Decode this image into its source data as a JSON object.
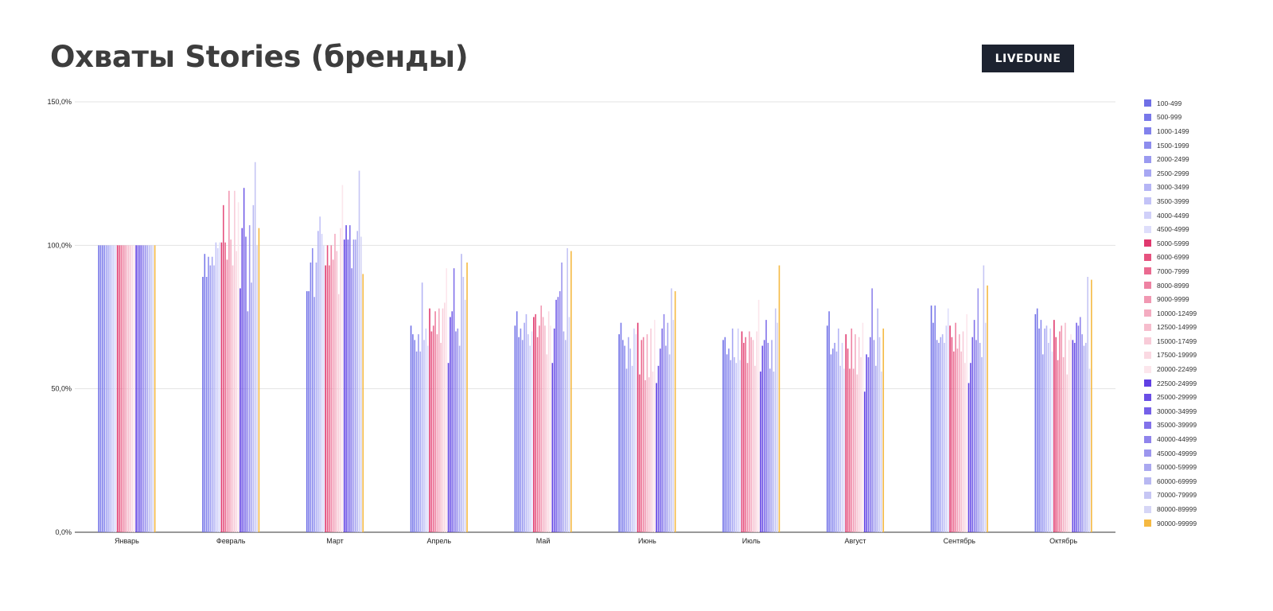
{
  "header": {
    "title": "Охваты Stories (бренды)",
    "brand": "LIVEDUNE"
  },
  "chart_data": {
    "type": "bar",
    "title": "Охваты Stories (бренды)",
    "xlabel": "",
    "ylabel": "",
    "ylim": [
      0,
      150
    ],
    "yticks": [
      "0,0%",
      "50,0%",
      "100,0%",
      "150,0%"
    ],
    "ytick_values": [
      0,
      50,
      100,
      150
    ],
    "grid": true,
    "legend_position": "right",
    "categories": [
      "Январь",
      "Февраль",
      "Март",
      "Апрель",
      "Май",
      "Июнь",
      "Июль",
      "Август",
      "Сентябрь",
      "Октябрь"
    ],
    "series": [
      {
        "name": "100-499",
        "color": "#6f6fe6",
        "values": [
          100,
          89,
          84,
          72,
          72,
          69,
          67,
          72,
          79,
          76
        ]
      },
      {
        "name": "500-999",
        "color": "#7878ea",
        "values": [
          100,
          97,
          84,
          69,
          77,
          73,
          68,
          77,
          73,
          78
        ]
      },
      {
        "name": "1000-1499",
        "color": "#8282ec",
        "values": [
          100,
          89,
          94,
          67,
          68,
          67,
          62,
          62,
          79,
          71
        ]
      },
      {
        "name": "1500-1999",
        "color": "#8d8dee",
        "values": [
          100,
          96,
          99,
          63,
          71,
          65,
          64,
          64,
          67,
          74
        ]
      },
      {
        "name": "2000-2499",
        "color": "#9a9af0",
        "values": [
          100,
          93,
          82,
          69,
          67,
          57,
          60,
          66,
          66,
          62
        ]
      },
      {
        "name": "2500-2999",
        "color": "#a7a7f3",
        "values": [
          100,
          96,
          94,
          63,
          73,
          68,
          71,
          63,
          68,
          71
        ]
      },
      {
        "name": "3000-3499",
        "color": "#b5b5f5",
        "values": [
          100,
          93,
          105,
          87,
          76,
          64,
          61,
          71,
          69,
          72
        ]
      },
      {
        "name": "3500-3999",
        "color": "#c3c3f7",
        "values": [
          100,
          101,
          110,
          67,
          69,
          58,
          59,
          58,
          66,
          66
        ]
      },
      {
        "name": "4000-4499",
        "color": "#d0d0f9",
        "values": [
          100,
          99,
          104,
          71,
          65,
          71,
          71,
          66,
          72,
          71
        ]
      },
      {
        "name": "4500-4999",
        "color": "#dedefb",
        "values": [
          100,
          101,
          100,
          65,
          70,
          69,
          60,
          57,
          78,
          63
        ]
      },
      {
        "name": "5000-5999",
        "color": "#e0386e",
        "values": [
          100,
          101,
          93,
          78,
          75,
          73,
          70,
          69,
          72,
          74
        ]
      },
      {
        "name": "6000-6999",
        "color": "#e6527f",
        "values": [
          100,
          114,
          100,
          70,
          76,
          55,
          66,
          64,
          68,
          68
        ]
      },
      {
        "name": "7000-7999",
        "color": "#ea6a90",
        "values": [
          100,
          101,
          93,
          72,
          68,
          67,
          68,
          57,
          63,
          60
        ]
      },
      {
        "name": "8000-8999",
        "color": "#ee82a2",
        "values": [
          100,
          95,
          100,
          77,
          72,
          68,
          59,
          71,
          73,
          70
        ]
      },
      {
        "name": "9000-9999",
        "color": "#f198b2",
        "values": [
          100,
          119,
          95,
          69,
          79,
          53,
          70,
          57,
          64,
          72
        ]
      },
      {
        "name": "10000-12499",
        "color": "#f4acc1",
        "values": [
          100,
          102,
          104,
          78,
          75,
          69,
          68,
          69,
          69,
          61
        ]
      },
      {
        "name": "12500-14999",
        "color": "#f6bdcd",
        "values": [
          100,
          93,
          98,
          66,
          72,
          54,
          67,
          55,
          63,
          73
        ]
      },
      {
        "name": "15000-17499",
        "color": "#f8cbd8",
        "values": [
          100,
          119,
          83,
          78,
          62,
          71,
          58,
          68,
          70,
          55
        ]
      },
      {
        "name": "17500-19999",
        "color": "#fad9e2",
        "values": [
          100,
          98,
          106,
          80,
          77,
          56,
          70,
          61,
          59,
          67
        ]
      },
      {
        "name": "20000-22499",
        "color": "#fce6ec",
        "values": [
          100,
          115,
          121,
          92,
          72,
          74,
          81,
          73,
          76,
          69
        ]
      },
      {
        "name": "22500-24999",
        "color": "#6040e3",
        "values": [
          100,
          85,
          102,
          59,
          59,
          52,
          56,
          49,
          52,
          67
        ]
      },
      {
        "name": "25000-29999",
        "color": "#6a4ee6",
        "values": [
          100,
          106,
          107,
          75,
          71,
          58,
          65,
          62,
          59,
          66
        ]
      },
      {
        "name": "30000-34999",
        "color": "#7560e8",
        "values": [
          100,
          120,
          102,
          77,
          81,
          64,
          67,
          61,
          68,
          73
        ]
      },
      {
        "name": "35000-39999",
        "color": "#8272ea",
        "values": [
          100,
          103,
          107,
          92,
          82,
          71,
          74,
          68,
          74,
          72
        ]
      },
      {
        "name": "40000-44999",
        "color": "#8f84ec",
        "values": [
          100,
          77,
          92,
          70,
          84,
          76,
          66,
          85,
          67,
          75
        ]
      },
      {
        "name": "45000-49999",
        "color": "#9c96ee",
        "values": [
          100,
          107,
          102,
          71,
          94,
          65,
          57,
          67,
          85,
          69
        ]
      },
      {
        "name": "50000-59999",
        "color": "#aaa8f0",
        "values": [
          100,
          87,
          102,
          65,
          70,
          73,
          67,
          58,
          66,
          65
        ]
      },
      {
        "name": "60000-69999",
        "color": "#b8b8f2",
        "values": [
          100,
          114,
          105,
          97,
          67,
          62,
          56,
          78,
          61,
          66
        ]
      },
      {
        "name": "70000-79999",
        "color": "#c6c6f4",
        "values": [
          100,
          129,
          126,
          89,
          99,
          85,
          78,
          68,
          93,
          89
        ]
      },
      {
        "name": "80000-89999",
        "color": "#d6d6f6",
        "values": [
          100,
          100,
          103,
          81,
          75,
          74,
          73,
          56,
          73,
          57
        ]
      },
      {
        "name": "90000-99999",
        "color": "#f5b942",
        "values": [
          100,
          106,
          90,
          94,
          98,
          84,
          93,
          71,
          86,
          88
        ]
      }
    ]
  }
}
